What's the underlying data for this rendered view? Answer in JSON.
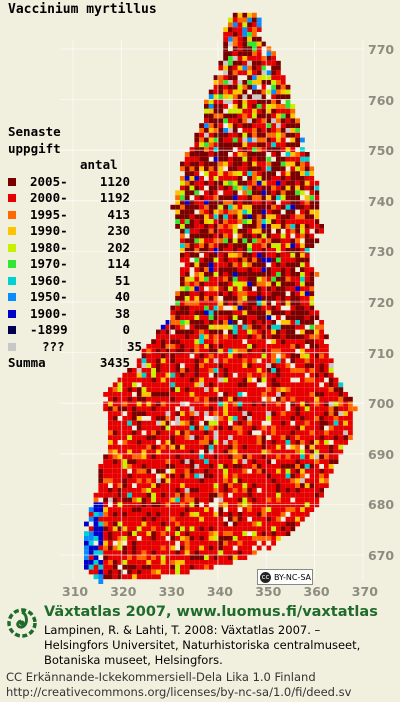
{
  "title": "Vaccinium myrtillus",
  "legend": {
    "heading_line1": "Senaste",
    "heading_line2": "uppgift",
    "count_header": "antal",
    "rows": [
      {
        "period": "2005-",
        "count": "1120",
        "color": "#7a0000"
      },
      {
        "period": "2000-",
        "count": "1192",
        "color": "#e60000"
      },
      {
        "period": "1995-",
        "count": "413",
        "color": "#ff6a00"
      },
      {
        "period": "1990-",
        "count": "230",
        "color": "#ffc400"
      },
      {
        "period": "1980-",
        "count": "202",
        "color": "#c8f000"
      },
      {
        "period": "1970-",
        "count": "114",
        "color": "#33e633"
      },
      {
        "period": "1960-",
        "count": "51",
        "color": "#00d2d2"
      },
      {
        "period": "1950-",
        "count": "40",
        "color": "#0a8cff"
      },
      {
        "period": "1900-",
        "count": "38",
        "color": "#0000c8"
      },
      {
        "period": "-1899",
        "count": "0",
        "color": "#000050"
      },
      {
        "period": "???",
        "count": "35",
        "color": "#c8c8c8"
      }
    ],
    "summa_label": "Summa",
    "summa_value": "3435"
  },
  "y_ticks": [
    "770",
    "760",
    "750",
    "740",
    "730",
    "720",
    "710",
    "700",
    "690",
    "680",
    "670"
  ],
  "x_ticks": [
    "310",
    "320",
    "330",
    "340",
    "350",
    "360",
    "370"
  ],
  "cc_badge": "BY-NC-SA",
  "footer": {
    "title": "Växtatlas 2007, www.luomus.fi/vaxtatlas",
    "citation_line1": "Lampinen, R. & Lahti, T. 2008: Växtatlas 2007. –",
    "citation_line2": "Helsingfors Universitet, Naturhistoriska centralmuseet,",
    "citation_line3": "Botaniska museet, Helsingfors.",
    "license_line1": "CC Erkännande-Ickekommersiell-Dela Lika 1.0 Finland",
    "license_line2": "http://creativecommons.org/licenses/by-nc-sa/1.0/fi/deed.sv"
  }
}
